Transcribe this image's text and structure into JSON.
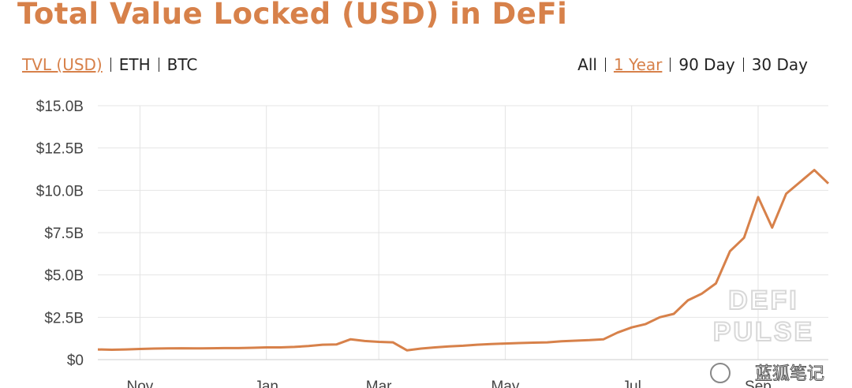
{
  "chart_data": {
    "type": "line",
    "title": "Total Value Locked (USD) in DeFi",
    "unit_tabs": [
      "TVL (USD)",
      "ETH",
      "BTC"
    ],
    "active_unit_tab": 0,
    "range_tabs": [
      "All",
      "1 Year",
      "90 Day",
      "30 Day"
    ],
    "active_range_tab": 1,
    "categories": [
      null,
      null,
      null,
      "Nov",
      null,
      null,
      null,
      null,
      null,
      null,
      null,
      null,
      "Jan",
      null,
      null,
      null,
      null,
      null,
      null,
      null,
      "Mar",
      null,
      null,
      null,
      null,
      null,
      null,
      null,
      null,
      "May",
      null,
      null,
      null,
      null,
      null,
      null,
      null,
      null,
      "Jul",
      null,
      null,
      null,
      null,
      null,
      null,
      null,
      null,
      "Sep",
      null,
      null,
      null,
      null,
      null
    ],
    "values": [
      0.6,
      0.58,
      0.6,
      0.63,
      0.65,
      0.66,
      0.67,
      0.66,
      0.67,
      0.68,
      0.68,
      0.7,
      0.72,
      0.72,
      0.75,
      0.8,
      0.88,
      0.9,
      1.2,
      1.1,
      1.05,
      1.02,
      0.55,
      0.65,
      0.72,
      0.78,
      0.82,
      0.88,
      0.92,
      0.95,
      0.98,
      1.0,
      1.02,
      1.08,
      1.12,
      1.15,
      1.2,
      1.6,
      1.9,
      2.1,
      2.5,
      2.7,
      3.5,
      3.9,
      4.5,
      6.4,
      7.2,
      9.6,
      7.8,
      9.8,
      10.5,
      11.2,
      10.4
    ],
    "color": "#d7814a",
    "ylim": [
      0,
      15
    ],
    "yticks": [
      {
        "value": 0,
        "label": "$0"
      },
      {
        "value": 2.5,
        "label": "$2.5B"
      },
      {
        "value": 5,
        "label": "$5.0B"
      },
      {
        "value": 7.5,
        "label": "$7.5B"
      },
      {
        "value": 10,
        "label": "$10.0B"
      },
      {
        "value": 12.5,
        "label": "$12.5B"
      },
      {
        "value": 15,
        "label": "$15.0B"
      }
    ],
    "grid": true,
    "watermark": [
      "DEFI",
      "PULSE"
    ],
    "credit": "蓝狐笔记"
  }
}
